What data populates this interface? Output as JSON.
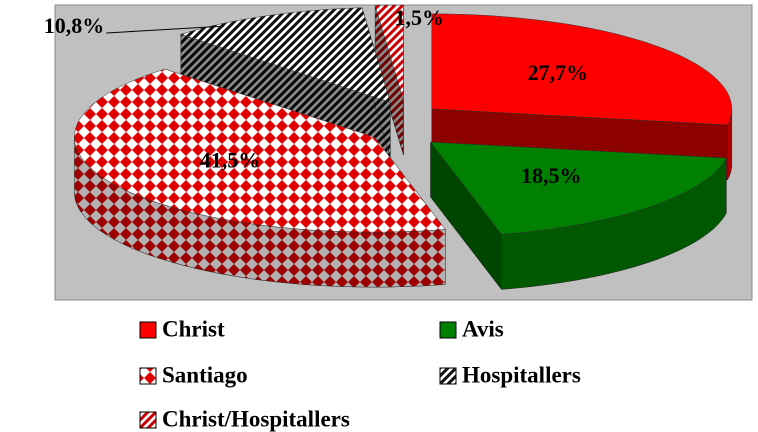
{
  "chart_data": {
    "type": "pie",
    "categories": [
      "Christ",
      "Avis",
      "Santiago",
      "Hospitallers",
      "Christ/Hospitallers"
    ],
    "values": [
      27.7,
      18.5,
      41.5,
      10.8,
      1.5
    ],
    "value_labels": [
      "27,7%",
      "18,5%",
      "41,5%",
      "10,8%",
      "1,5%"
    ],
    "colors": [
      "#ff0000",
      "#008000",
      "#e00000",
      "#111111",
      "#cc0000"
    ],
    "patterns": [
      null,
      null,
      "diamonds",
      "stripes",
      "stripes"
    ],
    "legend": "bottom"
  }
}
